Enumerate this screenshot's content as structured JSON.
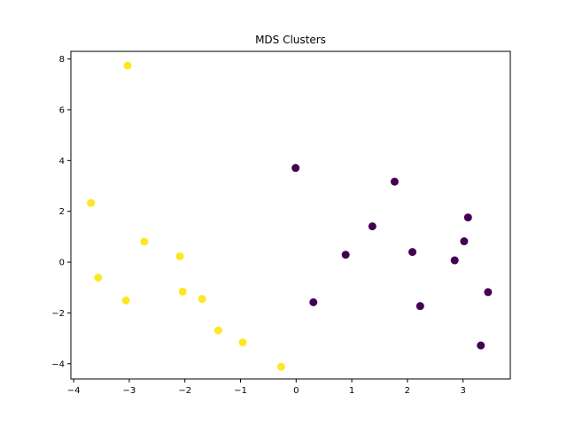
{
  "chart_data": {
    "type": "scatter",
    "title": "MDS Clusters",
    "xlabel": "",
    "ylabel": "",
    "xlim": [
      -4.05,
      3.85
    ],
    "ylim": [
      -4.6,
      8.3
    ],
    "xticks": [
      -4,
      -3,
      -2,
      -1,
      0,
      1,
      2,
      3
    ],
    "yticks": [
      -4,
      -2,
      0,
      2,
      4,
      6,
      8
    ],
    "grid": false,
    "legend": "none",
    "series": [
      {
        "color": "#fde725",
        "points": [
          {
            "x": -3.03,
            "y": 7.74
          },
          {
            "x": -3.69,
            "y": 2.33
          },
          {
            "x": -2.73,
            "y": 0.81
          },
          {
            "x": -2.09,
            "y": 0.23
          },
          {
            "x": -3.56,
            "y": -0.61
          },
          {
            "x": -2.04,
            "y": -1.16
          },
          {
            "x": -3.06,
            "y": -1.51
          },
          {
            "x": -1.69,
            "y": -1.45
          },
          {
            "x": -1.4,
            "y": -2.69
          },
          {
            "x": -0.96,
            "y": -3.16
          },
          {
            "x": -0.27,
            "y": -4.12
          }
        ]
      },
      {
        "color": "#440154",
        "points": [
          {
            "x": -0.01,
            "y": 3.71
          },
          {
            "x": 1.77,
            "y": 3.17
          },
          {
            "x": 3.09,
            "y": 1.76
          },
          {
            "x": 1.37,
            "y": 1.41
          },
          {
            "x": 3.02,
            "y": 0.82
          },
          {
            "x": 2.09,
            "y": 0.4
          },
          {
            "x": 0.89,
            "y": 0.29
          },
          {
            "x": 2.85,
            "y": 0.07
          },
          {
            "x": 3.45,
            "y": -1.18
          },
          {
            "x": 0.31,
            "y": -1.58
          },
          {
            "x": 2.23,
            "y": -1.73
          },
          {
            "x": 3.32,
            "y": -3.28
          }
        ]
      }
    ]
  }
}
